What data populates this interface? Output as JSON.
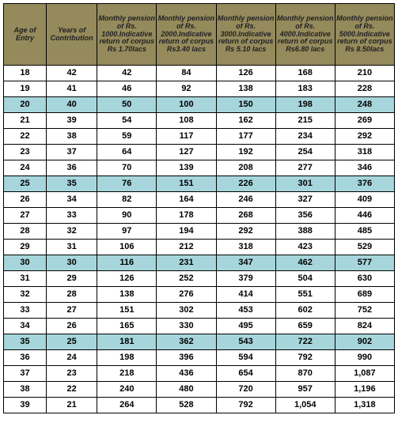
{
  "table": {
    "headers": [
      "Age of Entry",
      "Years of Contribution",
      "Monthly pension of Rs. 1000.Indicative return of corpus Rs 1.70lacs",
      "Monthly pension of Rs. 2000.Indicative return of corpus Rs3.40 lacs",
      "Monthly pension of Rs. 3000.Indicative return of corpus Rs 5.10 lacs",
      "Monthly pension of Rs. 4000.Indicative return of corpus Rs6.80 lacs",
      "Monthly pension of Rs. 5000.Indicative return of corpus Rs 8.50lacs"
    ],
    "highlight_rows": [
      2,
      7,
      12,
      17
    ],
    "rows": [
      [
        "18",
        "42",
        "42",
        "84",
        "126",
        "168",
        "210"
      ],
      [
        "19",
        "41",
        "46",
        "92",
        "138",
        "183",
        "228"
      ],
      [
        "20",
        "40",
        "50",
        "100",
        "150",
        "198",
        "248"
      ],
      [
        "21",
        "39",
        "54",
        "108",
        "162",
        "215",
        "269"
      ],
      [
        "22",
        "38",
        "59",
        "117",
        "177",
        "234",
        "292"
      ],
      [
        "23",
        "37",
        "64",
        "127",
        "192",
        "254",
        "318"
      ],
      [
        "24",
        "36",
        "70",
        "139",
        "208",
        "277",
        "346"
      ],
      [
        "25",
        "35",
        "76",
        "151",
        "226",
        "301",
        "376"
      ],
      [
        "26",
        "34",
        "82",
        "164",
        "246",
        "327",
        "409"
      ],
      [
        "27",
        "33",
        "90",
        "178",
        "268",
        "356",
        "446"
      ],
      [
        "28",
        "32",
        "97",
        "194",
        "292",
        "388",
        "485"
      ],
      [
        "29",
        "31",
        "106",
        "212",
        "318",
        "423",
        "529"
      ],
      [
        "30",
        "30",
        "116",
        "231",
        "347",
        "462",
        "577"
      ],
      [
        "31",
        "29",
        "126",
        "252",
        "379",
        "504",
        "630"
      ],
      [
        "32",
        "28",
        "138",
        "276",
        "414",
        "551",
        "689"
      ],
      [
        "33",
        "27",
        "151",
        "302",
        "453",
        "602",
        "752"
      ],
      [
        "34",
        "26",
        "165",
        "330",
        "495",
        "659",
        "824"
      ],
      [
        "35",
        "25",
        "181",
        "362",
        "543",
        "722",
        "902"
      ],
      [
        "36",
        "24",
        "198",
        "396",
        "594",
        "792",
        "990"
      ],
      [
        "37",
        "23",
        "218",
        "436",
        "654",
        "870",
        "1,087"
      ],
      [
        "38",
        "22",
        "240",
        "480",
        "720",
        "957",
        "1,196"
      ],
      [
        "39",
        "21",
        "264",
        "528",
        "792",
        "1,054",
        "1,318"
      ]
    ],
    "colors": {
      "header_bg": "#948a5b",
      "highlight_bg": "#a6d6db",
      "border": "#000000",
      "cell_bg": "#ffffff"
    }
  }
}
